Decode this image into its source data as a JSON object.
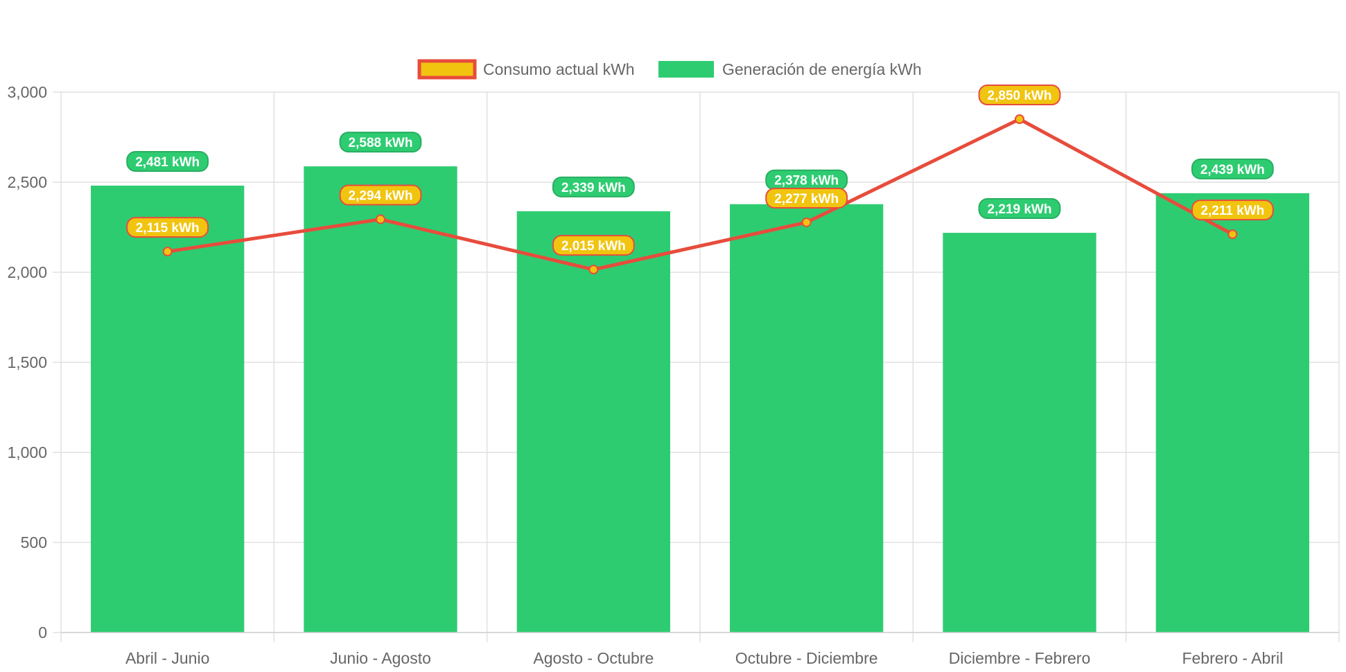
{
  "chart_data": {
    "type": "bar",
    "categories": [
      "Abril - Junio",
      "Junio - Agosto",
      "Agosto - Octubre",
      "Octubre - Diciembre",
      "Diciembre - Febrero",
      "Febrero - Abril"
    ],
    "series": [
      {
        "name": "Consumo actual kWh",
        "type": "line",
        "values": [
          2115,
          2294,
          2015,
          2277,
          2850,
          2211
        ],
        "color": "#e74c3c",
        "point_color": "#f1c40f",
        "label_bg": "#f1c40f",
        "label_border": "#e74c3c"
      },
      {
        "name": "Generación de energía kWh",
        "type": "bar",
        "values": [
          2481,
          2588,
          2339,
          2378,
          2219,
          2439
        ],
        "color": "#2ecc71",
        "label_bg": "#2ecc71",
        "label_border": "#27ae60"
      }
    ],
    "ylim": [
      0,
      3000
    ],
    "yticks": [
      0,
      500,
      1000,
      1500,
      2000,
      2500,
      3000
    ],
    "yticks_labels": [
      "0",
      "500",
      "1,000",
      "1,500",
      "2,000",
      "2,500",
      "3,000"
    ],
    "data_label_unit": "kWh",
    "legend": {
      "position": "top",
      "entries": [
        "Consumo actual kWh",
        "Generación de energía kWh"
      ]
    },
    "grid": true,
    "title": "",
    "xlabel": "",
    "ylabel": ""
  }
}
